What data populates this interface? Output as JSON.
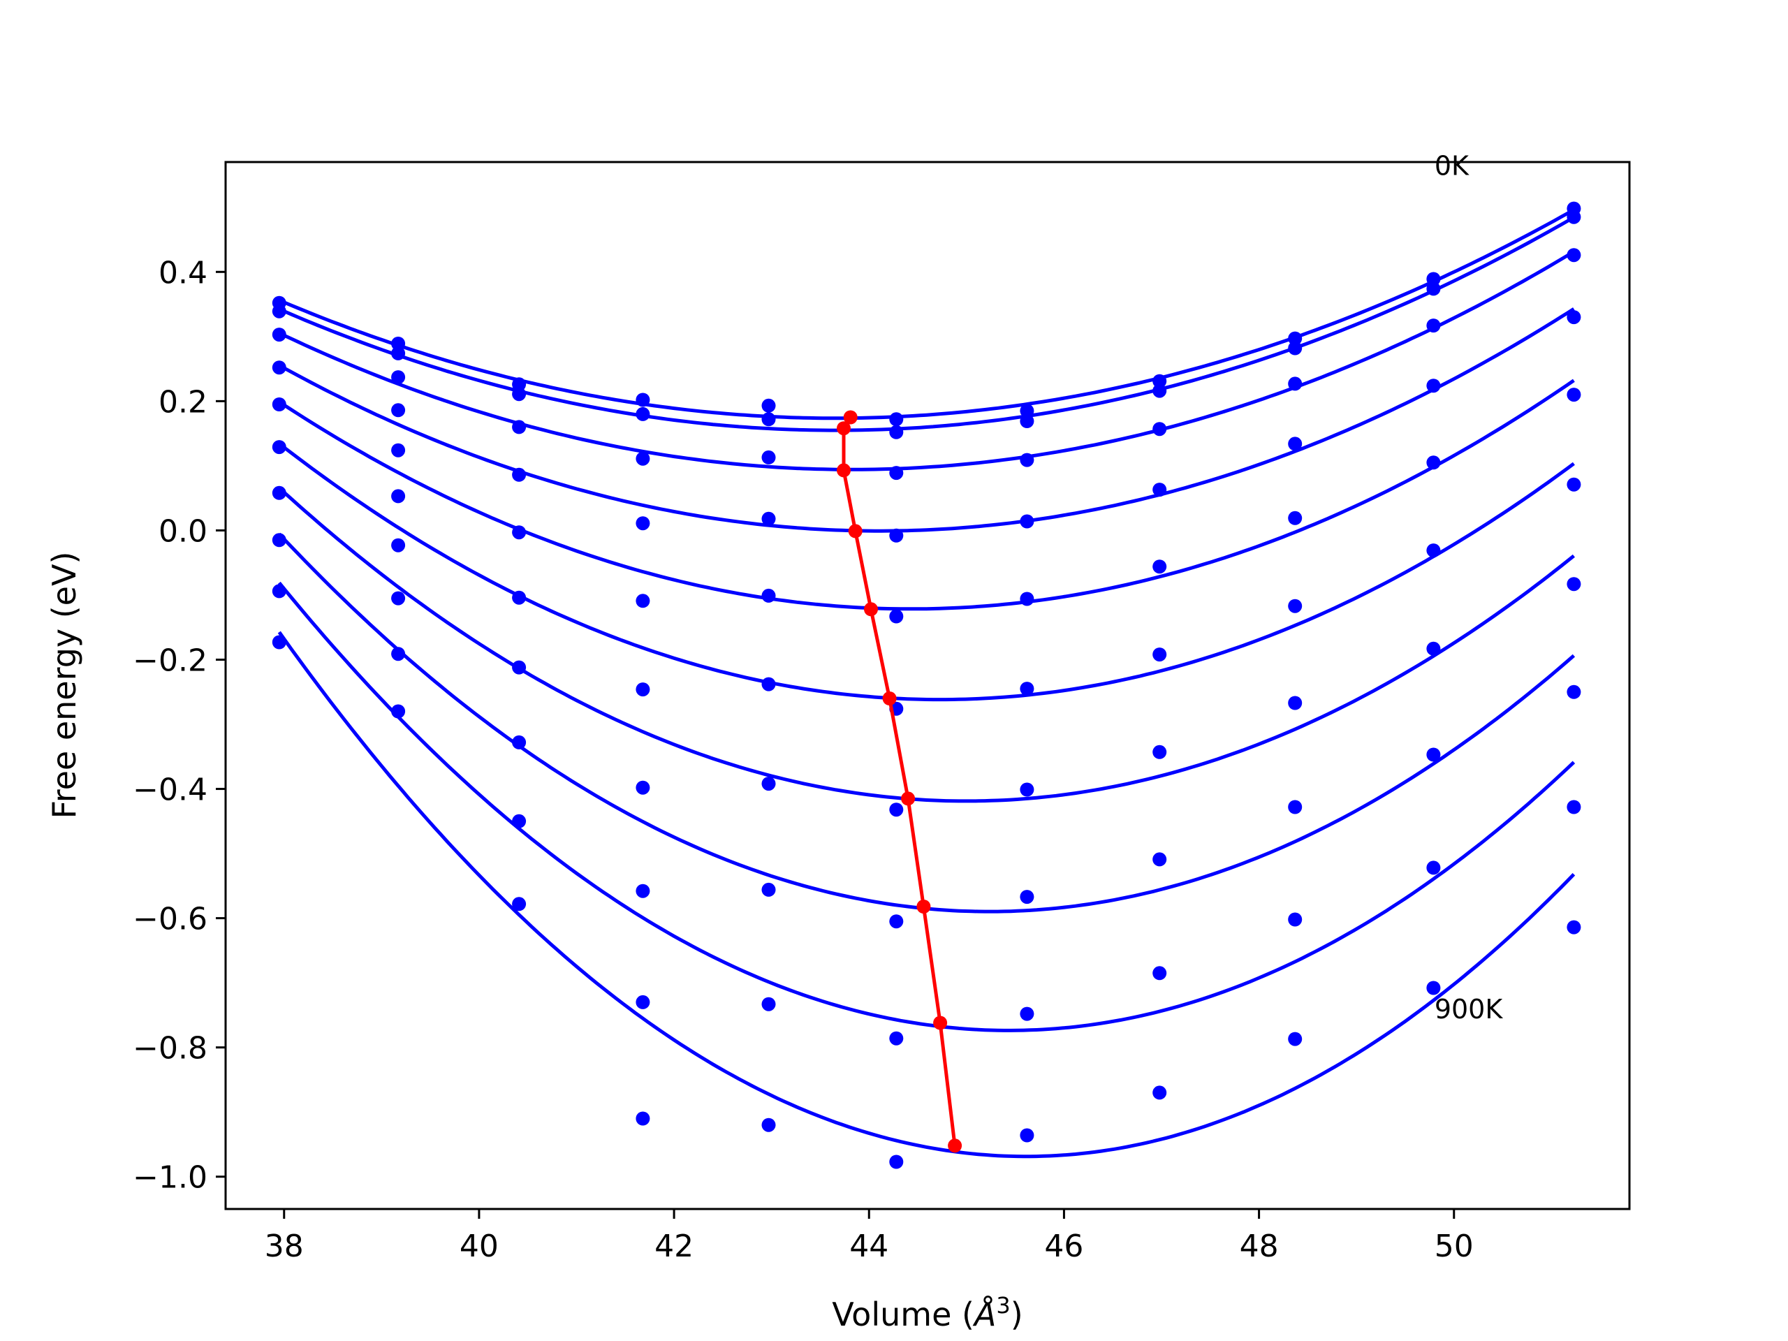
{
  "chart_data": {
    "type": "scatter",
    "xlabel": "Volume (",
    "xlabel_unit": "Å",
    "xlabel_unit_exp": "3",
    "xlabel_close": ")",
    "ylabel": "Free energy (eV)",
    "xlim": [
      37.4,
      51.8
    ],
    "ylim": [
      -1.05,
      0.57
    ],
    "xticks": [
      38,
      40,
      42,
      44,
      46,
      48,
      50
    ],
    "xtick_labels": [
      "38",
      "40",
      "42",
      "44",
      "46",
      "48",
      "50"
    ],
    "yticks": [
      -1.0,
      -0.8,
      -0.6,
      -0.4,
      -0.2,
      0.0,
      0.2,
      0.4
    ],
    "ytick_labels": [
      "−1.0",
      "−0.8",
      "−0.6",
      "−0.4",
      "−0.2",
      "0.0",
      "0.2",
      "0.4"
    ],
    "grid": false,
    "colors": {
      "fit": "#0000ff",
      "points": "#0000ff",
      "minimum": "#ff0000"
    },
    "annotations": [
      {
        "text": "0K",
        "x": 49.8,
        "y": 0.55
      },
      {
        "text": "900K",
        "x": 49.8,
        "y": -0.755
      }
    ],
    "volumes": [
      37.95,
      39.17,
      40.41,
      41.68,
      42.97,
      44.28,
      45.62,
      46.98,
      48.37,
      49.79,
      51.23
    ],
    "series": [
      {
        "points": [
          0.352,
          0.289,
          0.226,
          0.202,
          0.193,
          0.172,
          0.185,
          0.231,
          0.297,
          0.389,
          0.498
        ],
        "fit_min_v": 43.81,
        "fit_min_f": 0.175
      },
      {
        "points": [
          0.339,
          0.274,
          0.211,
          0.18,
          0.172,
          0.152,
          0.169,
          0.216,
          0.282,
          0.374,
          0.485
        ],
        "fit_min_v": 43.74,
        "fit_min_f": 0.158
      },
      {
        "points": [
          0.303,
          0.237,
          0.16,
          0.111,
          0.113,
          0.089,
          0.109,
          0.157,
          0.227,
          0.317,
          0.426
        ],
        "fit_min_v": 43.74,
        "fit_min_f": 0.093
      },
      {
        "points": [
          0.252,
          0.186,
          0.086,
          0.011,
          0.018,
          -0.008,
          0.014,
          0.063,
          0.134,
          0.224,
          0.33
        ],
        "fit_min_v": 43.86,
        "fit_min_f": -0.001
      },
      {
        "points": [
          0.195,
          0.124,
          -0.003,
          -0.109,
          -0.101,
          -0.133,
          -0.106,
          -0.056,
          0.019,
          0.105,
          0.21
        ],
        "fit_min_v": 44.02,
        "fit_min_f": -0.122
      },
      {
        "points": [
          0.129,
          0.053,
          -0.104,
          -0.246,
          -0.238,
          -0.276,
          -0.245,
          -0.192,
          -0.117,
          -0.031,
          0.071
        ],
        "fit_min_v": 44.21,
        "fit_min_f": -0.26
      },
      {
        "points": [
          0.058,
          -0.023,
          -0.212,
          -0.398,
          -0.392,
          -0.432,
          -0.401,
          -0.343,
          -0.267,
          -0.183,
          -0.083
        ],
        "fit_min_v": 44.4,
        "fit_min_f": -0.415
      },
      {
        "points": [
          -0.015,
          -0.105,
          -0.328,
          -0.558,
          -0.556,
          -0.605,
          -0.567,
          -0.509,
          -0.428,
          -0.347,
          -0.25
        ],
        "fit_min_v": 44.56,
        "fit_min_f": -0.582
      },
      {
        "points": [
          -0.094,
          -0.191,
          -0.45,
          -0.73,
          -0.733,
          -0.786,
          -0.748,
          -0.685,
          -0.602,
          -0.522,
          -0.428
        ],
        "fit_min_v": 44.73,
        "fit_min_f": -0.762
      },
      {
        "points": [
          -0.173,
          -0.28,
          -0.578,
          -0.91,
          -0.92,
          -0.977,
          -0.936,
          -0.87,
          -0.787,
          -0.708,
          -0.614
        ],
        "fit_min_v": 44.88,
        "fit_min_f": -0.952
      }
    ],
    "minima": {
      "v": [
        43.81,
        43.74,
        43.74,
        43.86,
        44.02,
        44.21,
        44.4,
        44.56,
        44.73,
        44.88
      ],
      "f": [
        0.175,
        0.158,
        0.093,
        -0.001,
        -0.122,
        -0.26,
        -0.415,
        -0.582,
        -0.762,
        -0.952
      ]
    }
  }
}
